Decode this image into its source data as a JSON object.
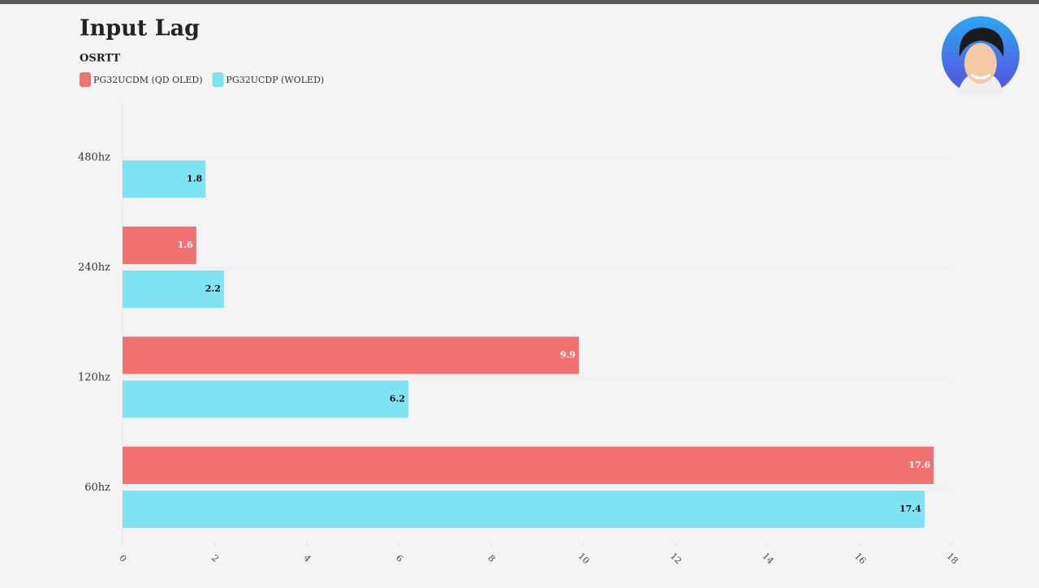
{
  "chart_data": {
    "type": "hbar",
    "title": "Input Lag",
    "subtitle": "OSRTT",
    "categories": [
      "480hz",
      "240hz",
      "120hz",
      "60hz"
    ],
    "series": [
      {
        "name": "PG32UCDM (QD OLED)",
        "color": "#f27171",
        "values": [
          null,
          1.6,
          9.9,
          17.6
        ]
      },
      {
        "name": "PG32UCDP (WOLED)",
        "color": "#80e3f2",
        "values": [
          1.8,
          2.2,
          6.2,
          17.4
        ]
      }
    ],
    "xlim": [
      0,
      18
    ],
    "xticks": [
      0,
      2,
      4,
      6,
      8,
      10,
      12,
      14,
      16,
      18
    ],
    "grid": true
  }
}
